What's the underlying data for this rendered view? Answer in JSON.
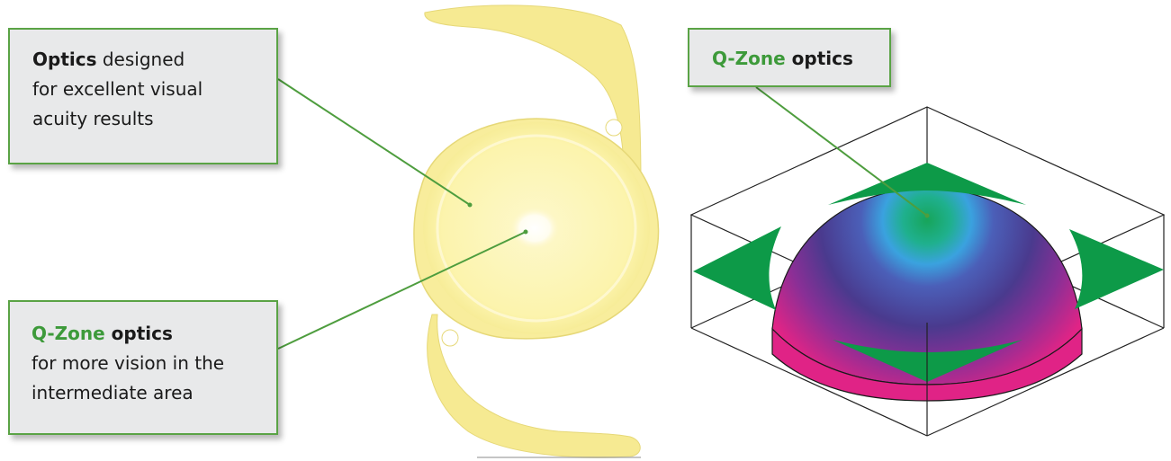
{
  "colors": {
    "accent_green": "#3d9a3a",
    "callout_border": "#5aa345",
    "callout_bg": "#e8e9ea",
    "lens_yellow": "#fbf3a6",
    "arrow_green": "#0d9a48"
  },
  "callout_optics": {
    "bold": "Optics",
    "line1_rest": " designed",
    "line2": "for excellent visual",
    "line3": "acuity results"
  },
  "callout_qzone_lower": {
    "green": "Q-Zone",
    "bold": " optics",
    "line2": "for more vision in the",
    "line3": "intermediate area"
  },
  "callout_qzone_right": {
    "green": "Q-Zone",
    "bold": " optics"
  },
  "icons": [
    "intraocular-lens-illustration",
    "dome-surface-illustration",
    "green-arrow-icon"
  ]
}
